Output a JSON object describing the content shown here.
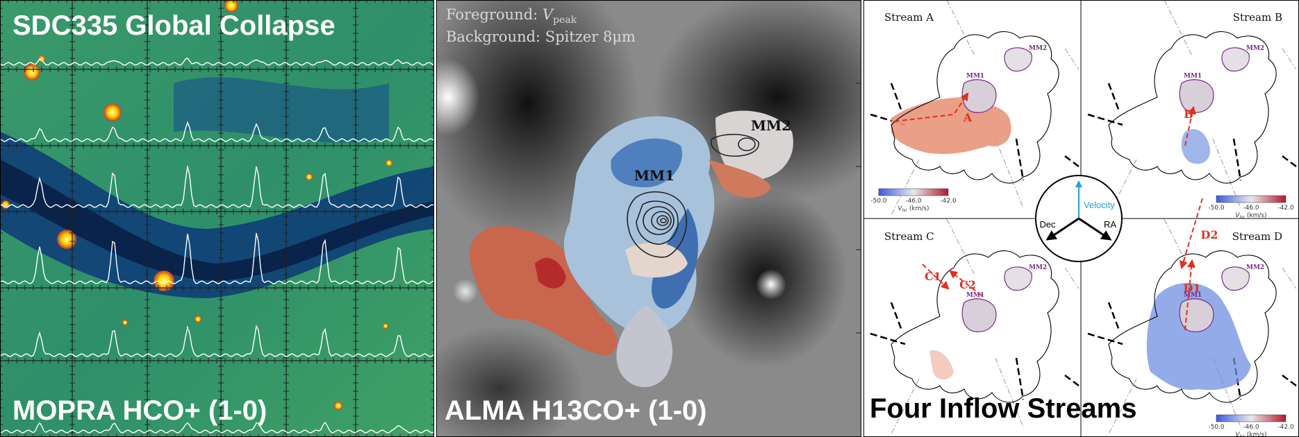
{
  "panel_left": {
    "title": "SDC335 Global Collapse",
    "caption": "MOPRA HCO+ (1-0)"
  },
  "panel_middle": {
    "foreground_prefix": "Foreground: ",
    "foreground_symbol": "V",
    "foreground_subscript": "peak",
    "background": "Background: Spitzer 8μm",
    "mm1": "MM1",
    "mm2": "MM2",
    "caption": "ALMA H13CO+ (1-0)"
  },
  "panel_right": {
    "caption": "Four Inflow Streams",
    "compass": {
      "up": "Velocity",
      "left": "Dec",
      "right": "RA"
    },
    "streams": [
      {
        "title": "Stream A",
        "mm1": "MM1",
        "mm2": "MM2",
        "labels": [
          "A"
        ],
        "colorbar": {
          "ticks": [
            "-50.0",
            "-46.0",
            "-42.0"
          ],
          "symbol": "V",
          "subscript": "lsr",
          "unit": "(km/s)"
        }
      },
      {
        "title": "Stream B",
        "mm1": "MM1",
        "mm2": "MM2",
        "labels": [
          "B"
        ],
        "colorbar": {
          "ticks": [
            "-50.0",
            "-46.0",
            "-42.0"
          ],
          "symbol": "V",
          "subscript": "lsr",
          "unit": "(km/s)"
        }
      },
      {
        "title": "Stream C",
        "mm1": "MM1",
        "mm2": "MM2",
        "labels": [
          "C1",
          "C2"
        ]
      },
      {
        "title": "Stream D",
        "mm1": "MM1",
        "mm2": "MM2",
        "labels": [
          "D2",
          "D1"
        ],
        "colorbar": {
          "ticks": [
            "-50.0",
            "-46.0",
            "-42.0"
          ],
          "symbol": "V",
          "subscript": "lsr",
          "unit": "(km/s)"
        }
      }
    ]
  }
}
